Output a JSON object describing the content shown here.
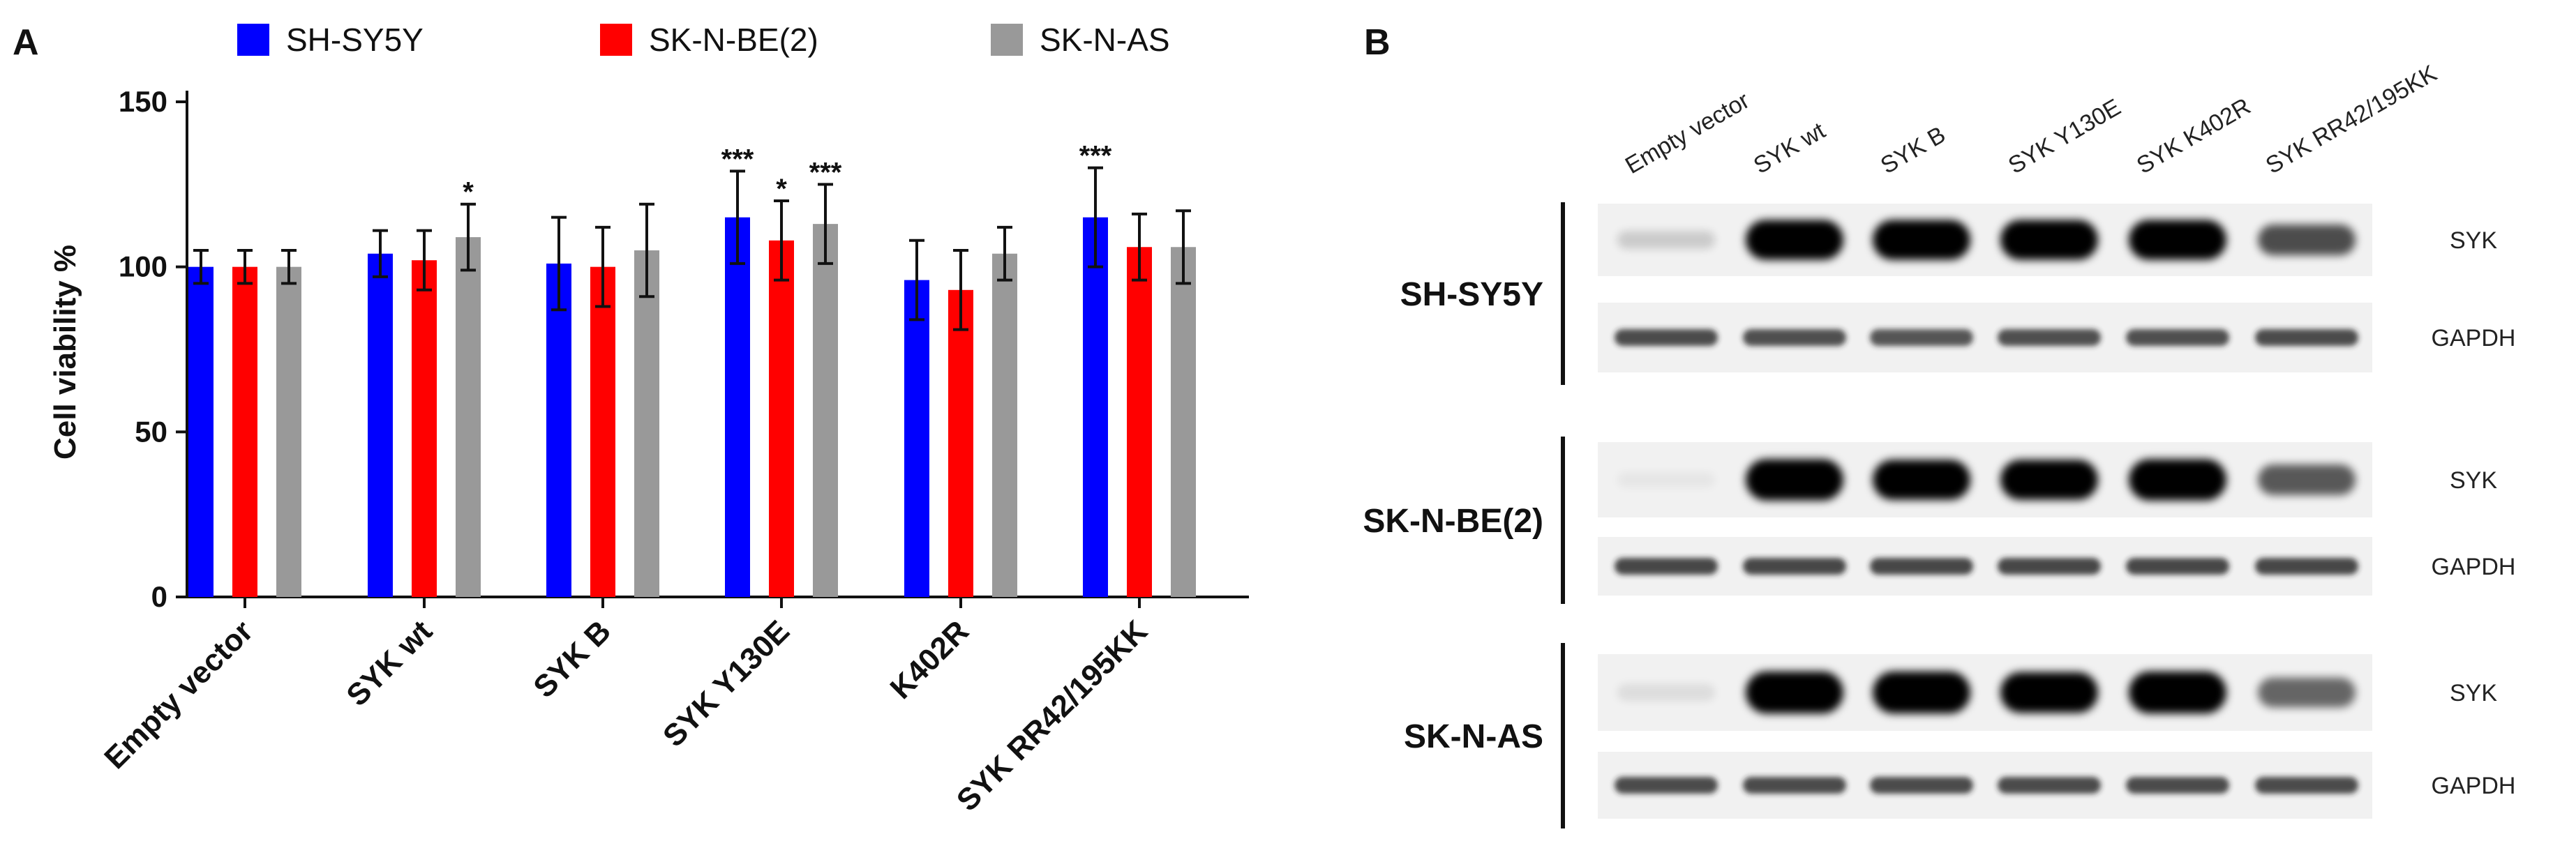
{
  "panelA": {
    "letter": "A",
    "legend": [
      {
        "label": "SH-SY5Y",
        "color": "#0000ff"
      },
      {
        "label": "SK-N-BE(2)",
        "color": "#ff0000"
      },
      {
        "label": "SK-N-AS",
        "color": "#999999"
      }
    ]
  },
  "panelB": {
    "letter": "B",
    "lanes": [
      "Empty vector",
      "SYK wt",
      "SYK B",
      "SYK Y130E",
      "SYK K402R",
      "SYK RR42/195KK"
    ],
    "blocks": [
      {
        "cell_line": "SH-SY5Y",
        "bands": [
          "SYK",
          "GAPDH"
        ],
        "syk_intensity": [
          0.15,
          1.0,
          1.0,
          1.0,
          1.0,
          0.65
        ],
        "gapdh_intensity": [
          0.8,
          0.78,
          0.75,
          0.78,
          0.78,
          0.8
        ]
      },
      {
        "cell_line": "SK-N-BE(2)",
        "bands": [
          "SYK",
          "GAPDH"
        ],
        "syk_intensity": [
          0.04,
          1.0,
          0.95,
          0.95,
          1.0,
          0.6
        ],
        "gapdh_intensity": [
          0.82,
          0.82,
          0.82,
          0.82,
          0.82,
          0.82
        ]
      },
      {
        "cell_line": "SK-N-AS",
        "bands": [
          "SYK",
          "GAPDH"
        ],
        "syk_intensity": [
          0.08,
          1.0,
          1.0,
          0.95,
          1.0,
          0.55
        ],
        "gapdh_intensity": [
          0.8,
          0.8,
          0.8,
          0.8,
          0.8,
          0.8
        ]
      }
    ]
  },
  "chart_data": {
    "type": "bar",
    "title": "",
    "xlabel": "",
    "ylabel": "Cell viability %",
    "ylim": [
      0,
      150
    ],
    "yticks": [
      0,
      50,
      100,
      150
    ],
    "grid": false,
    "legend_position": "top",
    "categories": [
      "Empty vector",
      "SYK wt",
      "SYK B",
      "SYK Y130E",
      "K402R",
      "SYK RR42/195KK"
    ],
    "series": [
      {
        "name": "SH-SY5Y",
        "color": "#0000ff",
        "values": [
          100,
          104,
          101,
          115,
          96,
          115
        ],
        "errors": [
          5,
          7,
          14,
          14,
          12,
          15
        ],
        "significance": [
          "",
          "",
          "",
          "***",
          "",
          "***"
        ]
      },
      {
        "name": "SK-N-BE(2)",
        "color": "#ff0000",
        "values": [
          100,
          102,
          100,
          108,
          93,
          106
        ],
        "errors": [
          5,
          9,
          12,
          12,
          12,
          10
        ],
        "significance": [
          "",
          "",
          "",
          "*",
          "",
          ""
        ]
      },
      {
        "name": "SK-N-AS",
        "color": "#999999",
        "values": [
          100,
          109,
          105,
          113,
          104,
          106
        ],
        "errors": [
          5,
          10,
          14,
          12,
          8,
          11
        ],
        "significance": [
          "",
          "*",
          "",
          "***",
          "",
          ""
        ]
      }
    ]
  }
}
